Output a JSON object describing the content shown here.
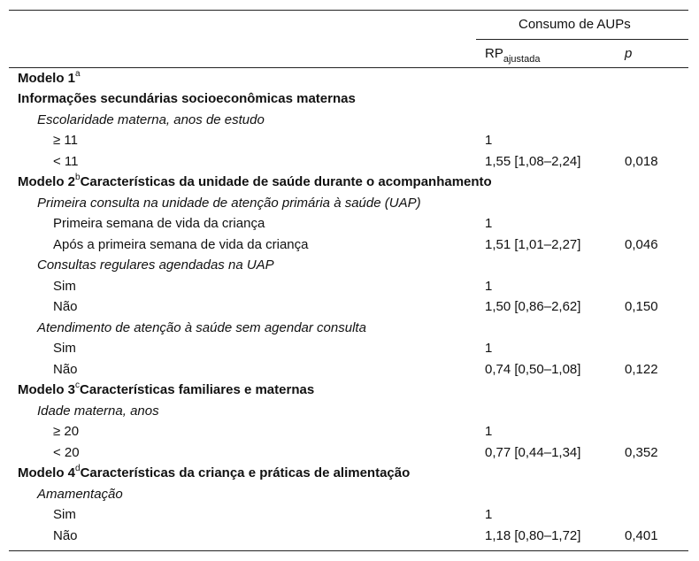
{
  "header": {
    "group": "Consumo de AUPs",
    "rp": "RP",
    "rp_sub": "ajustada",
    "p": "p"
  },
  "rows": [
    {
      "label": "Modelo 1",
      "sup": "a"
    },
    {
      "label": "Informações secundárias socioeconômicas maternas"
    },
    {
      "label": "Escolaridade materna, anos de estudo"
    },
    {
      "label": "≥ 11",
      "rp": "1"
    },
    {
      "label": "< 11",
      "rp": "1,55 [1,08–2,24]",
      "p": "0,018"
    },
    {
      "label": "Modelo 2",
      "sup": "b",
      "after": "Características da unidade de saúde durante o acompanhamento"
    },
    {
      "label": "Primeira consulta na unidade de atenção primária à saúde (UAP)"
    },
    {
      "label": "Primeira semana de vida da criança",
      "rp": "1"
    },
    {
      "label": "Após a primeira semana de vida da criança",
      "rp": "1,51 [1,01–2,27]",
      "p": "0,046"
    },
    {
      "label": "Consultas regulares agendadas na UAP"
    },
    {
      "label": "Sim",
      "rp": "1"
    },
    {
      "label": "Não",
      "rp": "1,50 [0,86–2,62]",
      "p": "0,150"
    },
    {
      "label": "Atendimento de atenção à saúde sem agendar consulta"
    },
    {
      "label": "Sim",
      "rp": "1"
    },
    {
      "label": "Não",
      "rp": "0,74 [0,50–1,08]",
      "p": "0,122"
    },
    {
      "label": "Modelo 3",
      "sup": "c",
      "after": "Características familiares e maternas"
    },
    {
      "label": "Idade materna, anos"
    },
    {
      "label": "≥ 20",
      "rp": "1"
    },
    {
      "label": "< 20",
      "rp": "0,77 [0,44–1,34]",
      "p": "0,352"
    },
    {
      "label": "Modelo 4",
      "sup": "d",
      "after": "Características da criança e práticas de alimentação"
    },
    {
      "label": "Amamentação"
    },
    {
      "label": "Sim",
      "rp": "1"
    },
    {
      "label": "Não",
      "rp": "1,18 [0,80–1,72]",
      "p": "0,401"
    }
  ]
}
